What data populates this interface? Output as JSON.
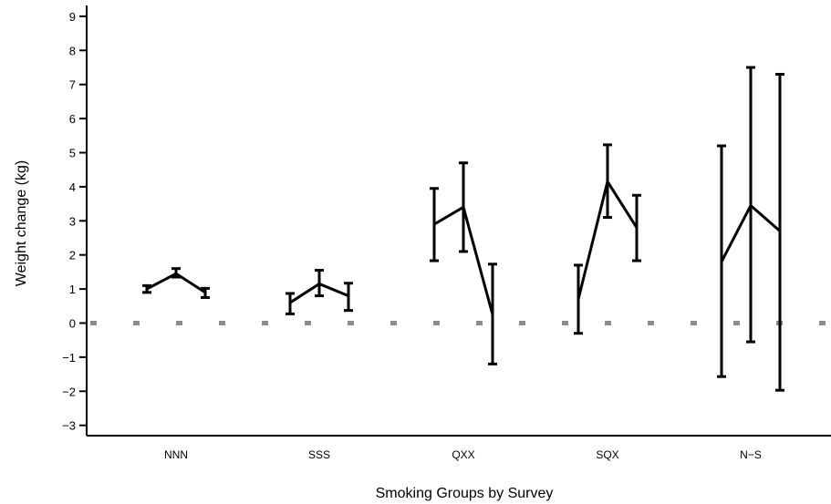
{
  "chart_data": {
    "type": "line",
    "title": "",
    "xlabel": "Smoking Groups by Survey",
    "ylabel": "Weight change (kg)",
    "ylim": [
      -3.3,
      9.3
    ],
    "yticks": [
      -3,
      -2,
      -1,
      0,
      1,
      2,
      3,
      4,
      5,
      6,
      7,
      8,
      9
    ],
    "ytick_labels": [
      "−3",
      "−2",
      "−1",
      "0",
      "1",
      "2",
      "3",
      "4",
      "5",
      "6",
      "7",
      "8",
      "9"
    ],
    "categories": [
      "NNN",
      "SSS",
      "QXX",
      "SQX",
      "N−S"
    ],
    "reference_line": {
      "y": 0,
      "style": "dashed",
      "color": "#8c8c8c"
    },
    "groups": [
      {
        "category": "NNN",
        "points": [
          {
            "mean": 1.0,
            "lower": 0.9,
            "upper": 1.1
          },
          {
            "mean": 1.45,
            "lower": 1.35,
            "upper": 1.6
          },
          {
            "mean": 0.9,
            "lower": 0.75,
            "upper": 1.02
          }
        ]
      },
      {
        "category": "SSS",
        "points": [
          {
            "mean": 0.6,
            "lower": 0.27,
            "upper": 0.87
          },
          {
            "mean": 1.15,
            "lower": 0.8,
            "upper": 1.55
          },
          {
            "mean": 0.8,
            "lower": 0.37,
            "upper": 1.17
          }
        ]
      },
      {
        "category": "QXX",
        "points": [
          {
            "mean": 2.9,
            "lower": 1.83,
            "upper": 3.95
          },
          {
            "mean": 3.4,
            "lower": 2.1,
            "upper": 4.7
          },
          {
            "mean": 0.25,
            "lower": -1.2,
            "upper": 1.73
          }
        ]
      },
      {
        "category": "SQX",
        "points": [
          {
            "mean": 0.7,
            "lower": -0.3,
            "upper": 1.7
          },
          {
            "mean": 4.15,
            "lower": 3.1,
            "upper": 5.23
          },
          {
            "mean": 2.8,
            "lower": 1.83,
            "upper": 3.75
          }
        ]
      },
      {
        "category": "N−S",
        "points": [
          {
            "mean": 1.8,
            "lower": -1.57,
            "upper": 5.2
          },
          {
            "mean": 3.45,
            "lower": -0.55,
            "upper": 7.5
          },
          {
            "mean": 2.7,
            "lower": -1.97,
            "upper": 7.3
          }
        ]
      }
    ],
    "line_color": "#000000"
  }
}
